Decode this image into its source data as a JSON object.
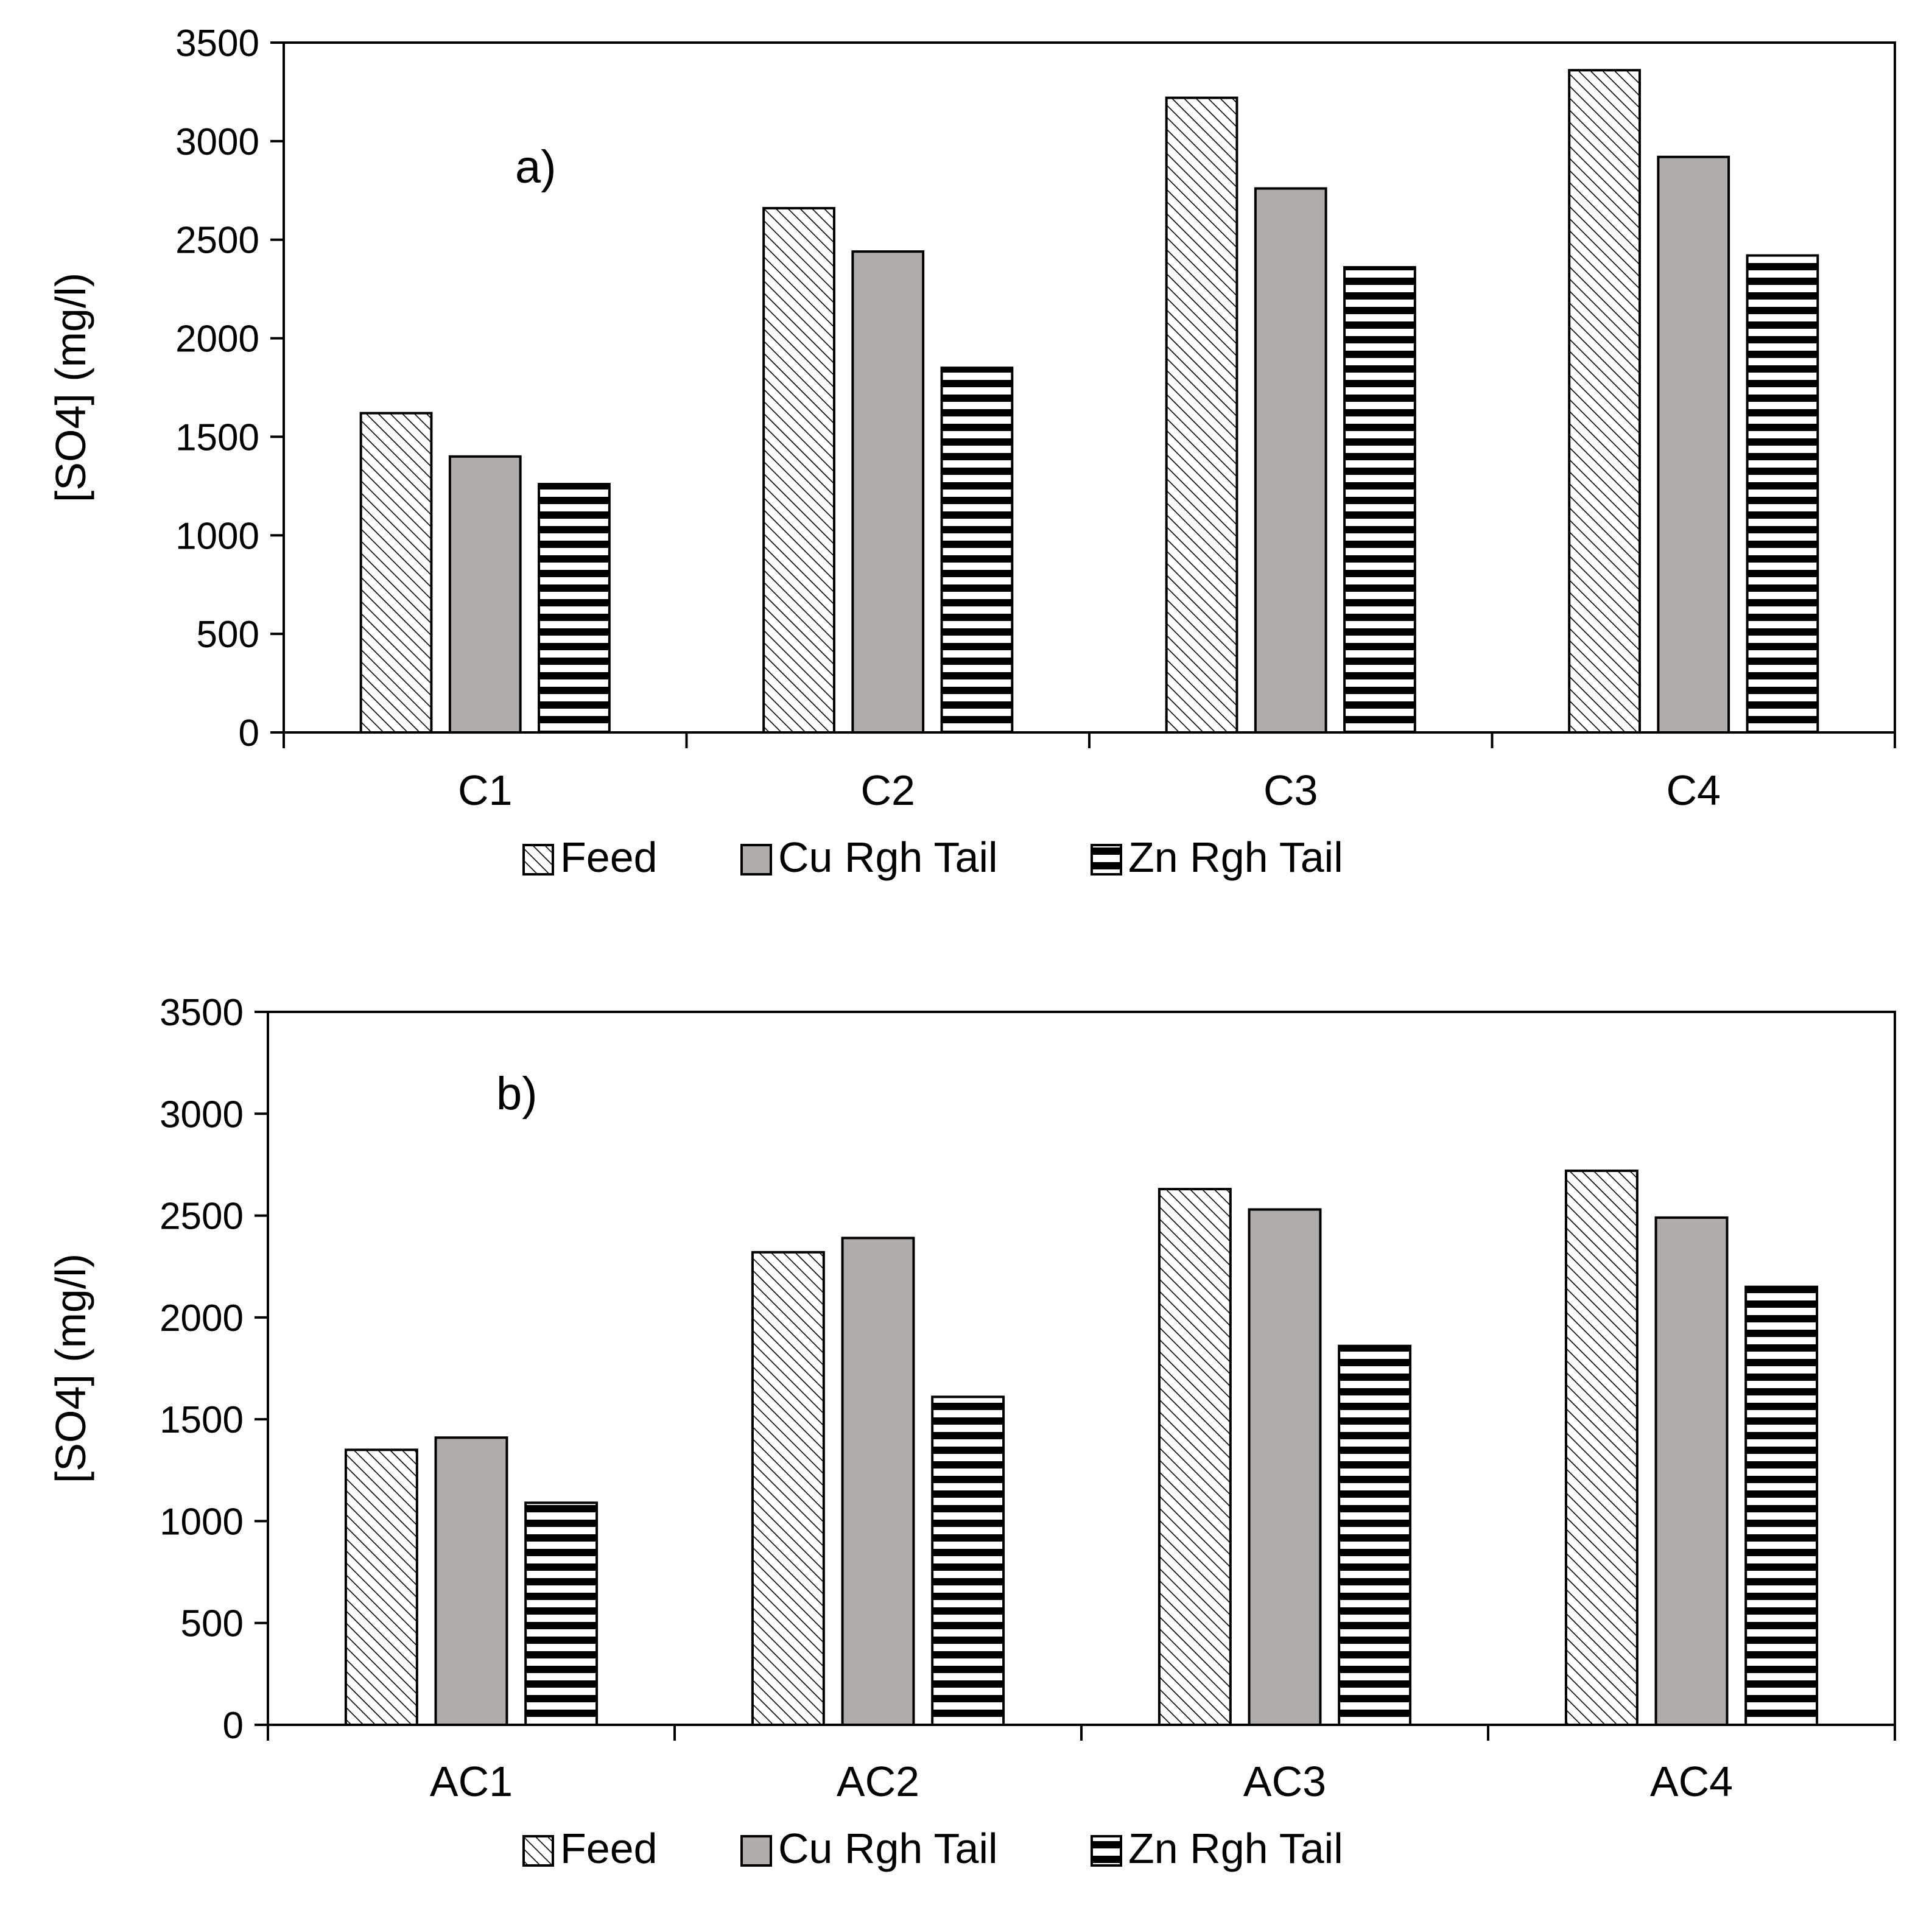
{
  "chart_data": [
    {
      "type": "bar",
      "panel_label": "a)",
      "categories": [
        "C1",
        "C2",
        "C3",
        "C4"
      ],
      "ylabel": "[SO4] (mg/l)",
      "xlabel": "",
      "ylim": [
        0,
        3500
      ],
      "yticks": [
        0,
        500,
        1000,
        1500,
        2000,
        2500,
        3000,
        3500
      ],
      "grid": false,
      "legend_position": "bottom-center",
      "series": [
        {
          "name": "Feed",
          "pattern": "diagonal-hatch",
          "values": [
            1620,
            2660,
            3220,
            3360
          ]
        },
        {
          "name": "Cu Rgh Tail",
          "pattern": "solid-gray",
          "values": [
            1400,
            2440,
            2760,
            2920
          ]
        },
        {
          "name": "Zn Rgh Tail",
          "pattern": "horizontal-stripes",
          "values": [
            1260,
            1850,
            2360,
            2420
          ]
        }
      ]
    },
    {
      "type": "bar",
      "panel_label": "b)",
      "categories": [
        "AC1",
        "AC2",
        "AC3",
        "AC4"
      ],
      "ylabel": "[SO4] (mg/l)",
      "xlabel": "",
      "ylim": [
        0,
        3500
      ],
      "yticks": [
        0,
        500,
        1000,
        1500,
        2000,
        2500,
        3000,
        3500
      ],
      "grid": false,
      "legend_position": "bottom-center",
      "series": [
        {
          "name": "Feed",
          "pattern": "diagonal-hatch",
          "values": [
            1350,
            2320,
            2630,
            2720
          ]
        },
        {
          "name": "Cu Rgh Tail",
          "pattern": "solid-gray",
          "values": [
            1410,
            2390,
            2530,
            2490
          ]
        },
        {
          "name": "Zn Rgh Tail",
          "pattern": "horizontal-stripes",
          "values": [
            1090,
            1610,
            1860,
            2150
          ]
        }
      ]
    }
  ],
  "colors": {
    "feed_hatch": "#000000",
    "cu_fill": "#b0acaa",
    "zn_stripe": "#000000",
    "background": "#ffffff"
  }
}
